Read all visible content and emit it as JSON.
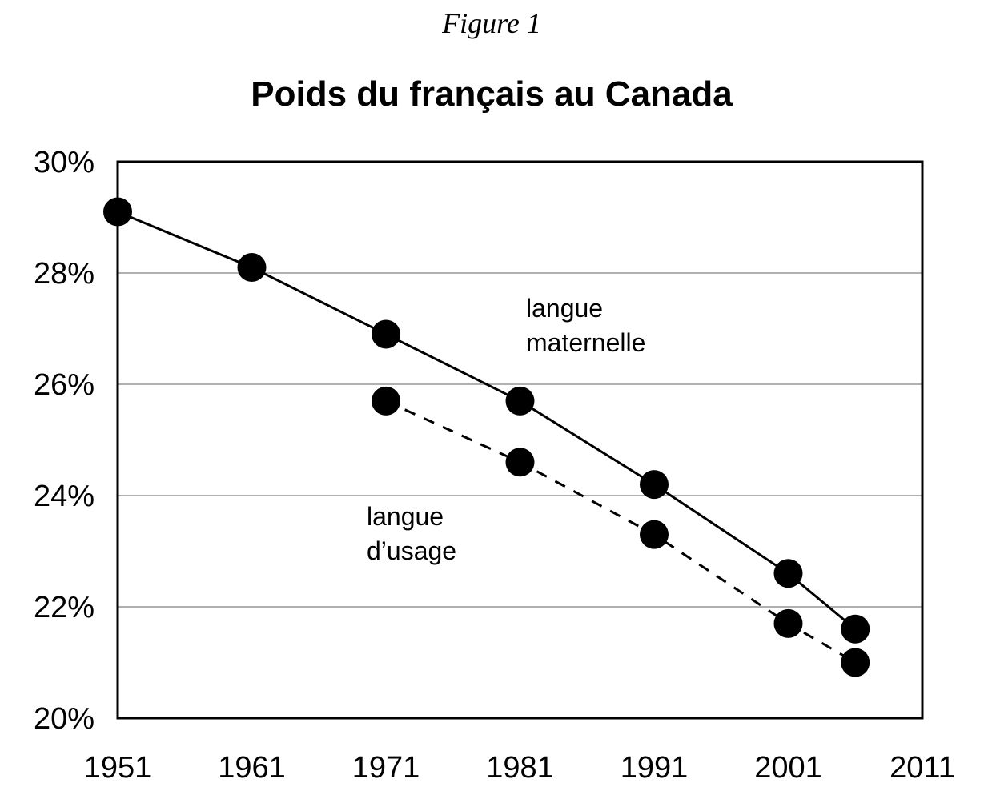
{
  "figure_label": "Figure 1",
  "chart_data": {
    "type": "line",
    "title": "Poids du français au Canada",
    "xlabel": "",
    "ylabel": "",
    "xlim": [
      1951,
      2011
    ],
    "ylim": [
      20,
      30
    ],
    "x_ticks": [
      "1951",
      "1961",
      "1971",
      "1981",
      "1991",
      "2001",
      "2011"
    ],
    "y_ticks": [
      "20%",
      "22%",
      "24%",
      "26%",
      "28%",
      "30%"
    ],
    "grid": "horizontal",
    "series": [
      {
        "name": "langue maternelle",
        "label_lines": [
          "langue",
          "maternelle"
        ],
        "style": "solid",
        "color": "#000000",
        "x": [
          1951,
          1961,
          1971,
          1981,
          1991,
          2001,
          2006
        ],
        "y": [
          29.1,
          28.1,
          26.9,
          25.7,
          24.2,
          22.6,
          21.6
        ]
      },
      {
        "name": "langue d’usage",
        "label_lines": [
          "langue",
          "d’usage"
        ],
        "style": "dashed",
        "color": "#000000",
        "x": [
          1971,
          1981,
          1991,
          2001,
          2006
        ],
        "y": [
          25.7,
          24.6,
          23.3,
          21.7,
          21.0
        ]
      }
    ]
  }
}
